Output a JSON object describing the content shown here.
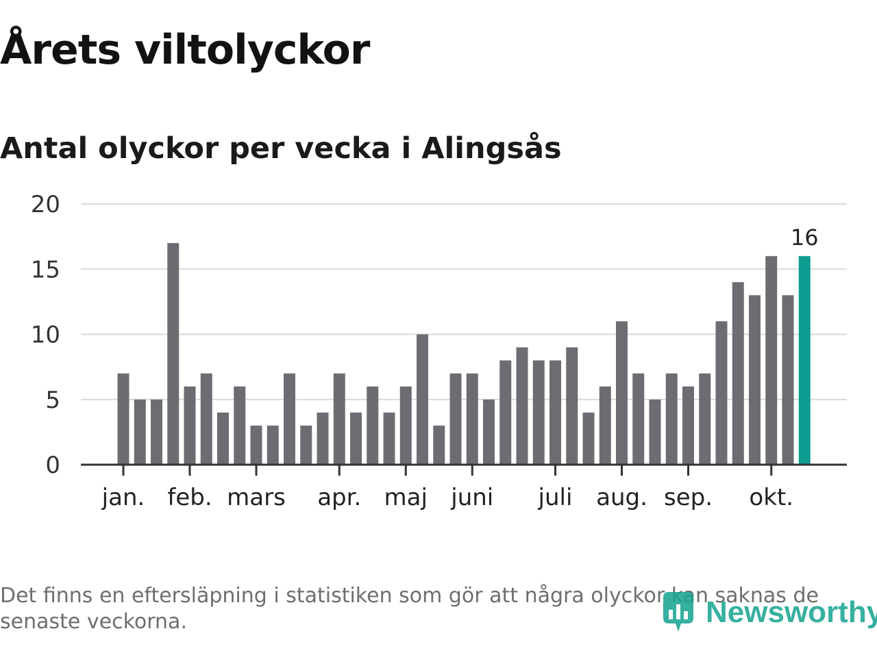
{
  "title": "Årets viltolyckor",
  "subtitle": "Antal olyckor per vecka i Alingsås",
  "footnote": "Det finns en eftersläpning i statistiken som gör att några olyckor kan saknas de senaste veckorna.",
  "brand": {
    "name": "Newsworthy",
    "icon": "newsworthy-logo-icon",
    "color": "#14a38f"
  },
  "colors": {
    "bar": "#6d6c72",
    "highlight": "#0e9c90",
    "grid": "#d9d9d9",
    "axis": "#333333"
  },
  "chart_data": {
    "type": "bar",
    "title": "Antal olyckor per vecka i Alingsås",
    "ylim": [
      0,
      20
    ],
    "yticks": [
      0,
      5,
      10,
      15,
      20
    ],
    "grid": true,
    "values": [
      7,
      5,
      5,
      17,
      6,
      7,
      4,
      6,
      3,
      3,
      7,
      3,
      4,
      7,
      4,
      6,
      4,
      6,
      10,
      3,
      7,
      7,
      5,
      8,
      9,
      8,
      8,
      9,
      4,
      6,
      11,
      7,
      5,
      7,
      6,
      7,
      11,
      14,
      13,
      16,
      13,
      16
    ],
    "highlight_index": 41,
    "highlight_label": "16",
    "month_ticks": [
      {
        "label": "jan.",
        "week_index": 0
      },
      {
        "label": "feb.",
        "week_index": 4
      },
      {
        "label": "mars",
        "week_index": 8
      },
      {
        "label": "apr.",
        "week_index": 13
      },
      {
        "label": "maj",
        "week_index": 17
      },
      {
        "label": "juni",
        "week_index": 21
      },
      {
        "label": "juli",
        "week_index": 26
      },
      {
        "label": "aug.",
        "week_index": 30
      },
      {
        "label": "sep.",
        "week_index": 34
      },
      {
        "label": "okt.",
        "week_index": 39
      }
    ]
  }
}
